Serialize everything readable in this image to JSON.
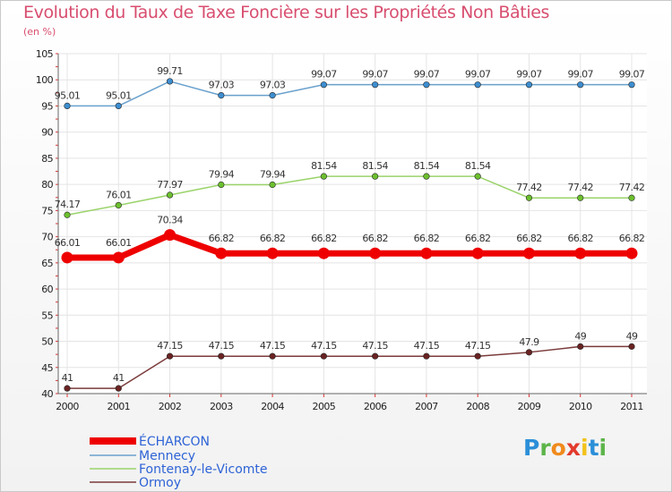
{
  "title": "Evolution du Taux de Taxe Foncière sur les Propriétés Non Bâties",
  "unit_label": "(en %)",
  "logo": {
    "text": "Proxiti",
    "letters": [
      {
        "ch": "P",
        "color": "#2b8fd8"
      },
      {
        "ch": "r",
        "color": "#5db44a"
      },
      {
        "ch": "o",
        "color": "#f08a1c"
      },
      {
        "ch": "x",
        "color": "#e23b2e"
      },
      {
        "ch": "i",
        "color": "#f2c21b"
      },
      {
        "ch": "t",
        "color": "#2b8fd8"
      },
      {
        "ch": "i",
        "color": "#5db44a"
      }
    ]
  },
  "chart_data": {
    "type": "line",
    "title": "Evolution du Taux de Taxe Foncière sur les Propriétés Non Bâties",
    "ylabel": "(en %)",
    "xlabel": "",
    "ylim": [
      40,
      105
    ],
    "yticks": [
      40,
      45,
      50,
      55,
      60,
      65,
      70,
      75,
      80,
      85,
      90,
      95,
      100,
      105
    ],
    "grid": true,
    "legend_position": "bottom-left",
    "x": [
      "2000",
      "2001",
      "2002",
      "2003",
      "2004",
      "2005",
      "2006",
      "2007",
      "2008",
      "2009",
      "2010",
      "2011"
    ],
    "series": [
      {
        "name": "Mennecy",
        "color": "#6aa1cd",
        "marker": "#3d8ed0",
        "width": 1.5,
        "values": [
          95.01,
          95.01,
          99.71,
          97.03,
          97.03,
          99.07,
          99.07,
          99.07,
          99.07,
          99.07,
          99.07,
          99.07
        ],
        "labels": [
          "95.01",
          "95.01",
          "99.71",
          "97.03",
          "97.03",
          "99.07",
          "99.07",
          "99.07",
          "99.07",
          "99.07",
          "99.07",
          "99.07"
        ]
      },
      {
        "name": "Fontenay-le-Vicomte",
        "color": "#9ad36a",
        "marker": "#6cc02e",
        "width": 1.5,
        "values": [
          74.17,
          76.01,
          77.97,
          79.94,
          79.94,
          81.54,
          81.54,
          81.54,
          81.54,
          77.42,
          77.42,
          77.42
        ],
        "labels": [
          "74.17",
          "76.01",
          "77.97",
          "79.94",
          "79.94",
          "81.54",
          "81.54",
          "81.54",
          "81.54",
          "77.42",
          "77.42",
          "77.42"
        ]
      },
      {
        "name": "ÉCHARCON",
        "color": "#ee0000",
        "marker": "#ee0000",
        "width": 7,
        "values": [
          66.01,
          66.01,
          70.34,
          66.82,
          66.82,
          66.82,
          66.82,
          66.82,
          66.82,
          66.82,
          66.82,
          66.82
        ],
        "labels": [
          "66.01",
          "66.01",
          "70.34",
          "66.82",
          "66.82",
          "66.82",
          "66.82",
          "66.82",
          "66.82",
          "66.82",
          "66.82",
          "66.82"
        ]
      },
      {
        "name": "Ormoy",
        "color": "#7b3b3b",
        "marker": "#6a2222",
        "width": 1.5,
        "values": [
          41,
          41,
          47.15,
          47.15,
          47.15,
          47.15,
          47.15,
          47.15,
          47.15,
          47.9,
          49,
          49
        ],
        "labels": [
          "41",
          "41",
          "47.15",
          "47.15",
          "47.15",
          "47.15",
          "47.15",
          "47.15",
          "47.15",
          "47.9",
          "49",
          "49"
        ]
      }
    ],
    "legend_order": [
      "ÉCHARCON",
      "Mennecy",
      "Fontenay-le-Vicomte",
      "Ormoy"
    ]
  }
}
